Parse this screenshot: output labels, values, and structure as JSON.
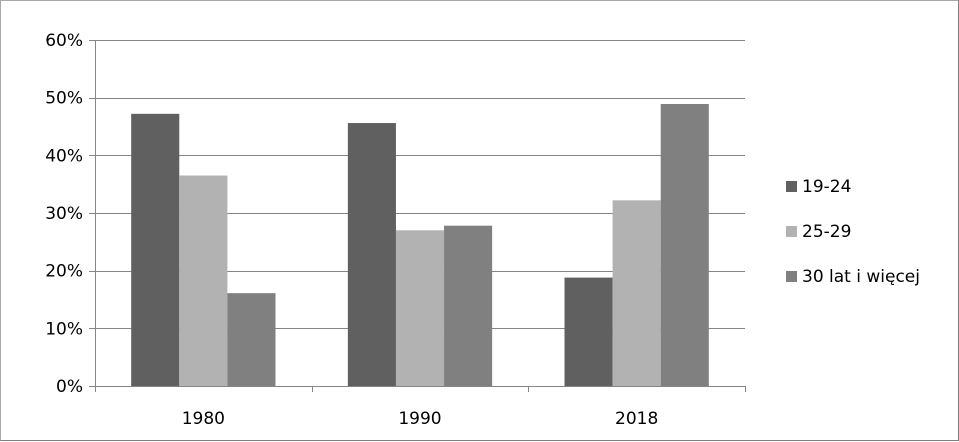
{
  "chart_data": {
    "type": "bar",
    "title": "",
    "xlabel": "",
    "ylabel": "",
    "categories": [
      "1980",
      "1990",
      "2018"
    ],
    "series": [
      {
        "name": "19-24",
        "color": "#606060",
        "values": [
          47.2,
          45.6,
          18.8
        ]
      },
      {
        "name": "25-29",
        "color": "#b2b2b2",
        "values": [
          36.5,
          27.0,
          32.2
        ]
      },
      {
        "name": "30 lat i więcej",
        "color": "#808080",
        "values": [
          16.1,
          27.8,
          48.9
        ]
      }
    ],
    "ylim": [
      0,
      60
    ],
    "yticks": [
      0,
      10,
      20,
      30,
      40,
      50,
      60
    ],
    "ytick_labels": [
      "0%",
      "10%",
      "20%",
      "30%",
      "40%",
      "50%",
      "60%"
    ],
    "grid": true,
    "legend_position": "right",
    "gridline_color": "#868686",
    "axis_color": "#868686"
  }
}
